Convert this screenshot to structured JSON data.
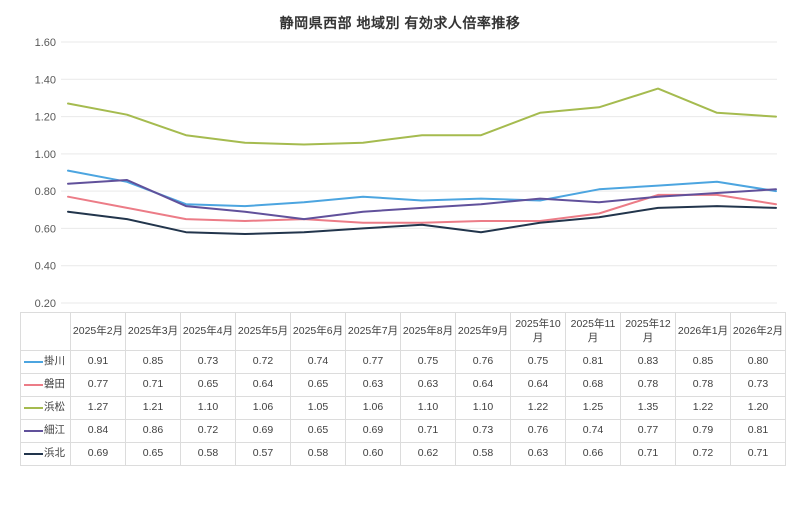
{
  "title": "静岡県西部 地域別 有効求人倍率推移",
  "chart_data": {
    "type": "line",
    "title": "静岡県西部 地域別 有効求人倍率推移",
    "xlabel": "",
    "ylabel": "",
    "categories": [
      "2025年2月",
      "2025年3月",
      "2025年4月",
      "2025年5月",
      "2025年6月",
      "2025年7月",
      "2025年8月",
      "2025年9月",
      "2025年10月",
      "2025年11月",
      "2025年12月",
      "2026年1月",
      "2026年2月"
    ],
    "series": [
      {
        "id": "kakegawa",
        "name": "掛川",
        "color": "#4CA5E0",
        "values": [
          0.91,
          0.85,
          0.73,
          0.72,
          0.74,
          0.77,
          0.75,
          0.76,
          0.75,
          0.81,
          0.83,
          0.85,
          0.8
        ]
      },
      {
        "id": "iwata",
        "name": "磐田",
        "color": "#EC7C87",
        "values": [
          0.77,
          0.71,
          0.65,
          0.64,
          0.65,
          0.63,
          0.63,
          0.64,
          0.64,
          0.68,
          0.78,
          0.78,
          0.73
        ]
      },
      {
        "id": "hamamatsu",
        "name": "浜松",
        "color": "#A5BB4F",
        "values": [
          1.27,
          1.21,
          1.1,
          1.06,
          1.05,
          1.06,
          1.1,
          1.1,
          1.22,
          1.25,
          1.35,
          1.22,
          1.2
        ]
      },
      {
        "id": "hosoe",
        "name": "細江",
        "color": "#61519B",
        "values": [
          0.84,
          0.86,
          0.72,
          0.69,
          0.65,
          0.69,
          0.71,
          0.73,
          0.76,
          0.74,
          0.77,
          0.79,
          0.81
        ]
      },
      {
        "id": "hamakita",
        "name": "浜北",
        "color": "#22354C",
        "values": [
          0.69,
          0.65,
          0.58,
          0.57,
          0.58,
          0.6,
          0.62,
          0.58,
          0.63,
          0.66,
          0.71,
          0.72,
          0.71
        ]
      }
    ],
    "ylim": [
      0.2,
      1.6
    ],
    "ytick_labels": [
      "1.60",
      "1.40",
      "1.20",
      "1.00",
      "0.80",
      "0.60",
      "0.40",
      "0.20"
    ],
    "grid": true,
    "legend_position": "table-rows-left"
  },
  "colors": {
    "gridline": "#e9e9e9",
    "table_border": "#dcdcdc",
    "tick_text": "#595959",
    "title_text": "#333333"
  }
}
